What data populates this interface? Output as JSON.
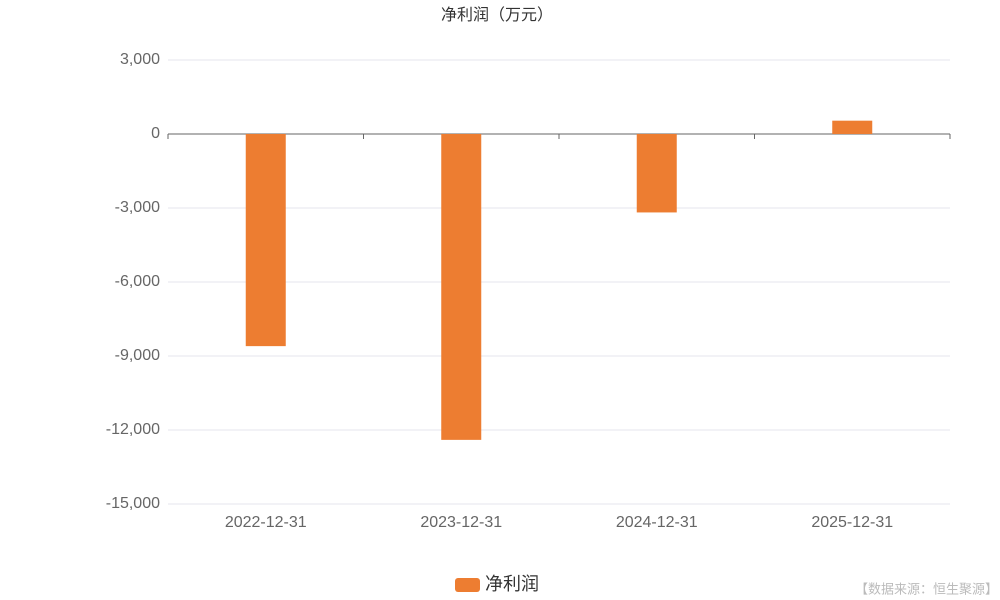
{
  "chart_data": {
    "type": "bar",
    "title": "净利润（万元）",
    "categories": [
      "2022-12-31",
      "2023-12-31",
      "2024-12-31",
      "2025-12-31"
    ],
    "series": [
      {
        "name": "净利润",
        "color": "#ed7d31",
        "values": [
          -8600,
          -12400,
          -3180,
          540
        ]
      }
    ],
    "ylim": [
      -15000,
      3000
    ],
    "yticks": [
      {
        "value": -15000,
        "label": "-15,000"
      },
      {
        "value": -12000,
        "label": "-12,000"
      },
      {
        "value": -9000,
        "label": "-9,000"
      },
      {
        "value": -6000,
        "label": "-6,000"
      },
      {
        "value": -3000,
        "label": "-3,000"
      },
      0,
      {
        "value": 3000,
        "label": "3,000"
      }
    ],
    "grid": true,
    "legend": "bottom",
    "source": "【数据来源：恒生聚源】"
  }
}
